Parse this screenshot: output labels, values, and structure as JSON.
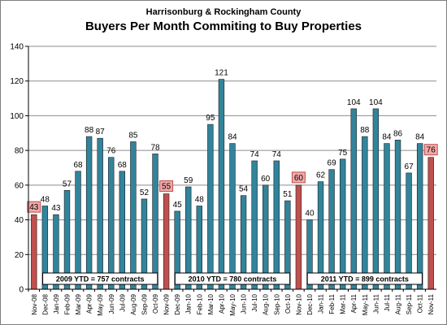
{
  "chart_data": {
    "type": "bar",
    "subtitle": "Harrisonburg  & Rockingham County",
    "title": "Buyers Per Month Commiting to Buy Properties",
    "xlabel": "",
    "ylabel": "",
    "ylim": [
      0,
      140
    ],
    "yticks": [
      0,
      20,
      40,
      60,
      80,
      100,
      120,
      140
    ],
    "grid": true,
    "legend": "none",
    "categories": [
      "Nov-08",
      "Dec-08",
      "Jan-09",
      "Feb-09",
      "Mar-09",
      "Apr-09",
      "May-09",
      "Jun-09",
      "Jul-09",
      "Aug-09",
      "Sep-09",
      "Oct-09",
      "Nov-09",
      "Dec-09",
      "Jan-10",
      "Feb-10",
      "Mar-10",
      "Apr-10",
      "May-10",
      "Jun-10",
      "Jul-10",
      "Aug-10",
      "Sep-10",
      "Oct-10",
      "Nov-10",
      "Dec-10",
      "Jan-11",
      "Feb-11",
      "Mar-11",
      "Apr-11",
      "May-11",
      "Jun-11",
      "Jul-11",
      "Aug-11",
      "Sep-11",
      "Oct-11",
      "Nov-11"
    ],
    "values": [
      43,
      48,
      43,
      57,
      68,
      88,
      87,
      76,
      68,
      85,
      52,
      78,
      55,
      45,
      59,
      48,
      95,
      121,
      84,
      54,
      74,
      60,
      74,
      51,
      60,
      40,
      62,
      69,
      75,
      104,
      88,
      104,
      84,
      86,
      67,
      84,
      76
    ],
    "highlighted": [
      "Nov-08",
      "Nov-09",
      "Nov-10",
      "Nov-11"
    ],
    "colors": {
      "bar": "#31849b",
      "highlight": "#c0504d",
      "highlight_label_bg": "#f2a8a8",
      "highlight_label_border": "#c0504d",
      "grid": "#8c8c8c"
    },
    "annotations": [
      {
        "text": "2009 YTD = 757 contracts",
        "from": "Dec-08",
        "to": "Oct-09"
      },
      {
        "text": "2010 YTD = 780 contracts",
        "from": "Dec-09",
        "to": "Oct-10"
      },
      {
        "text": "2011 YTD = 899 contracts",
        "from": "Dec-10",
        "to": "Oct-11"
      }
    ]
  }
}
